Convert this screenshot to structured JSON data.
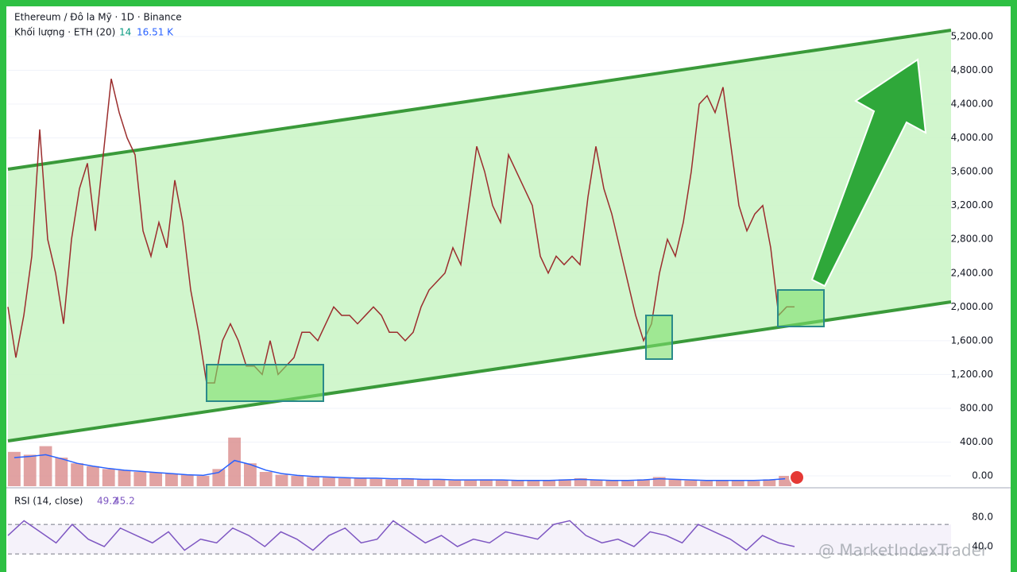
{
  "header": {
    "title": "Ethereum / Đô la Mỹ · 1D · Binance",
    "volume_label": "Khối lượng · ETH (20)",
    "volume_value_a": "14",
    "volume_value_b": "16.51 K",
    "rsi_label": "RSI (14, close)",
    "rsi_value_a": "49.2",
    "rsi_value_b": "45.2",
    "watermark": "@ MarketIndexTrader"
  },
  "chart_data": [
    {
      "type": "line",
      "color": "#9b2d2d",
      "ylim": [
        -122,
        5557
      ],
      "yticks": [
        {
          "value": 0,
          "label": "0.00"
        },
        {
          "value": 400,
          "label": "400.00"
        },
        {
          "value": 800,
          "label": "800.00"
        },
        {
          "value": 1200,
          "label": "1,200.00"
        },
        {
          "value": 1600,
          "label": "1,600.00"
        },
        {
          "value": 2000,
          "label": "2,000.00"
        },
        {
          "value": 2400,
          "label": "2,400.00"
        },
        {
          "value": 2800,
          "label": "2,800.00"
        },
        {
          "value": 3200,
          "label": "3,200.00"
        },
        {
          "value": 3600,
          "label": "3,600.00"
        },
        {
          "value": 4000,
          "label": "4,000.00"
        },
        {
          "value": 4400,
          "label": "4,400.00"
        },
        {
          "value": 4800,
          "label": "4,800.00"
        },
        {
          "value": 5200,
          "label": "5,200.00"
        }
      ],
      "grid": true,
      "values": [
        2000,
        1400,
        1900,
        2600,
        4100,
        2800,
        2400,
        1800,
        2800,
        3400,
        3700,
        2900,
        3800,
        4700,
        4300,
        4000,
        3800,
        2900,
        2600,
        3000,
        2700,
        3500,
        3000,
        2200,
        1700,
        1100,
        1100,
        1600,
        1800,
        1600,
        1300,
        1300,
        1200,
        1600,
        1200,
        1300,
        1400,
        1700,
        1700,
        1600,
        1800,
        2000,
        1900,
        1900,
        1800,
        1900,
        2000,
        1900,
        1700,
        1700,
        1600,
        1700,
        2000,
        2200,
        2300,
        2400,
        2700,
        2500,
        3200,
        3900,
        3600,
        3200,
        3000,
        3800,
        3600,
        3400,
        3200,
        2600,
        2400,
        2600,
        2500,
        2600,
        2500,
        3300,
        3900,
        3400,
        3100,
        2700,
        2300,
        1900,
        1600,
        1800,
        2400,
        2800,
        2600,
        3000,
        3600,
        4400,
        4500,
        4300,
        4600,
        3900,
        3200,
        2900,
        3100,
        3200,
        2700,
        1900,
        2000,
        2000
      ]
    },
    {
      "type": "bar",
      "color": "#d98b8b",
      "ylim": [
        0,
        100
      ],
      "values": [
        60,
        55,
        70,
        50,
        40,
        35,
        30,
        28,
        25,
        24,
        22,
        20,
        18,
        30,
        85,
        40,
        25,
        20,
        18,
        16,
        15,
        14,
        15,
        13,
        12,
        14,
        12,
        11,
        10,
        10,
        12,
        11,
        10,
        9,
        10,
        12,
        14,
        11,
        10,
        9,
        12,
        16,
        12,
        10,
        9,
        11,
        10,
        9,
        12,
        18
      ],
      "ma_color": "#2962ff",
      "ma": [
        50,
        52,
        55,
        48,
        40,
        35,
        31,
        28,
        26,
        24,
        22,
        20,
        19,
        24,
        45,
        38,
        28,
        22,
        19,
        17,
        16,
        15,
        14,
        14,
        13,
        13,
        12,
        12,
        11,
        11,
        11,
        11,
        10,
        10,
        10,
        11,
        12,
        11,
        10,
        10,
        11,
        13,
        12,
        11,
        10,
        10,
        10,
        10,
        11,
        13
      ]
    },
    {
      "type": "line",
      "color": "#7e57c2",
      "ylim": [
        12,
        111
      ],
      "yticks": [
        {
          "value": 40,
          "label": "40.0"
        },
        {
          "value": 80,
          "label": "80.0"
        }
      ],
      "bands": [
        30,
        70
      ],
      "values": [
        55,
        75,
        60,
        45,
        70,
        50,
        40,
        65,
        55,
        45,
        60,
        35,
        50,
        45,
        65,
        55,
        40,
        60,
        50,
        35,
        55,
        65,
        45,
        50,
        75,
        60,
        45,
        55,
        40,
        50,
        45,
        60,
        55,
        50,
        70,
        75,
        55,
        45,
        50,
        40,
        60,
        55,
        45,
        70,
        60,
        50,
        35,
        55,
        45,
        40
      ]
    }
  ]
}
